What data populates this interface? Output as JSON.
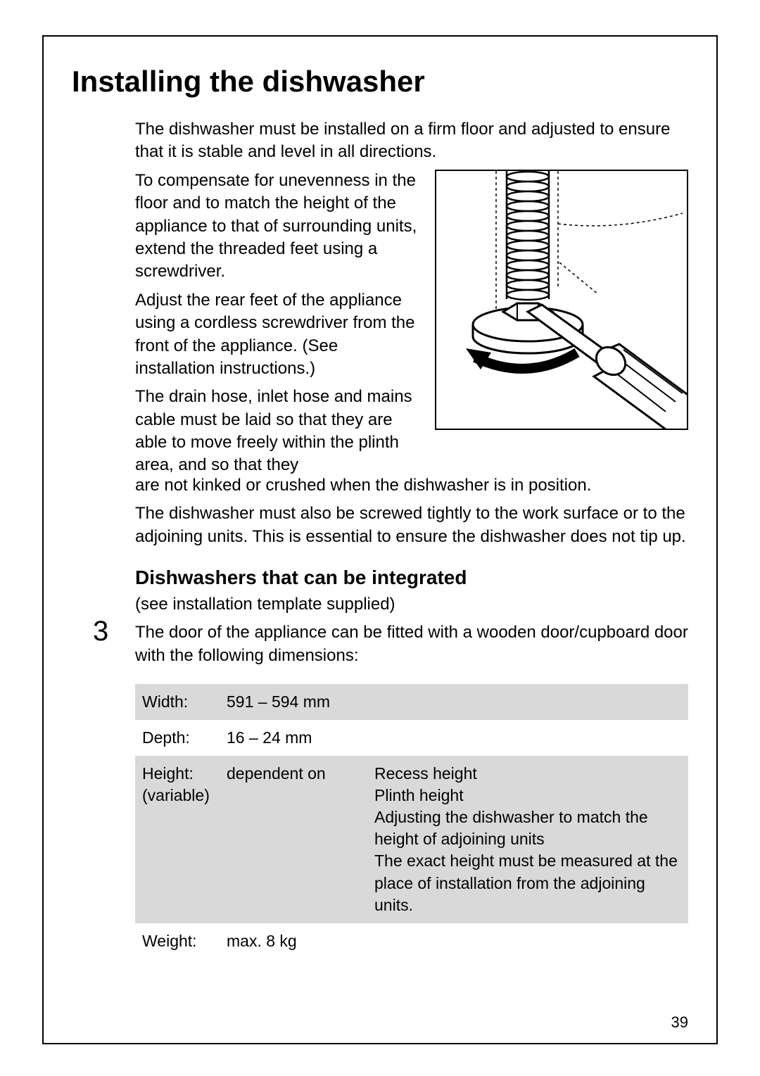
{
  "heading": "Installing the dishwasher",
  "intro": "The dishwasher must be installed on a firm floor and adjusted to ensure that it is stable and level in all directions.",
  "floatParas": [
    "To compensate for unevenness in the floor and to match the height of the appliance to that of surrounding units, extend the threaded feet using a screwdriver.",
    "Adjust the rear feet of the appliance using a cordless screwdriver from the front of the appliance. (See installation instructions.)",
    "The drain hose, inlet hose and mains cable must be laid so that they are able to move freely within the plinth area, and so that they"
  ],
  "afterFigure1": "are not kinked or crushed when the dishwasher is in position.",
  "afterFigure2": "The dishwasher must also be screwed tightly to the work surface or to the adjoining units. This is essential to ensure the dishwasher does not tip up.",
  "subheading": "Dishwashers that can be integrated",
  "subnote": "(see installation template supplied)",
  "stepNumber": "3",
  "stepText": "The door of the appliance can be fitted with a wooden door/cupboard door with the following dimensions:",
  "table": {
    "rowShading": {
      "alt": "#d9d9d9",
      "plain": "#ffffff"
    },
    "fontSizePt": 17,
    "rows": [
      {
        "c1": "Width:",
        "c2": "591 – 594 mm",
        "c3": "",
        "alt": true
      },
      {
        "c1": "Depth:",
        "c2": "16 – 24 mm",
        "c3": "",
        "alt": false
      },
      {
        "c1": "Height:\n(variable)",
        "c2": "dependent on",
        "c3": "Recess height\nPlinth height\nAdjusting the dishwasher to match the height of adjoining units\nThe exact height must be measured at the place of installation from the adjoining units.",
        "alt": true
      },
      {
        "c1": "Weight:",
        "c2": "max. 8 kg",
        "c3": "",
        "alt": false
      }
    ]
  },
  "figure": {
    "description": "threaded-foot-with-screwdriver",
    "strokeColor": "#000000",
    "fillColor": "#ffffff",
    "dashedColor": "#000000"
  },
  "pageNumber": "39"
}
